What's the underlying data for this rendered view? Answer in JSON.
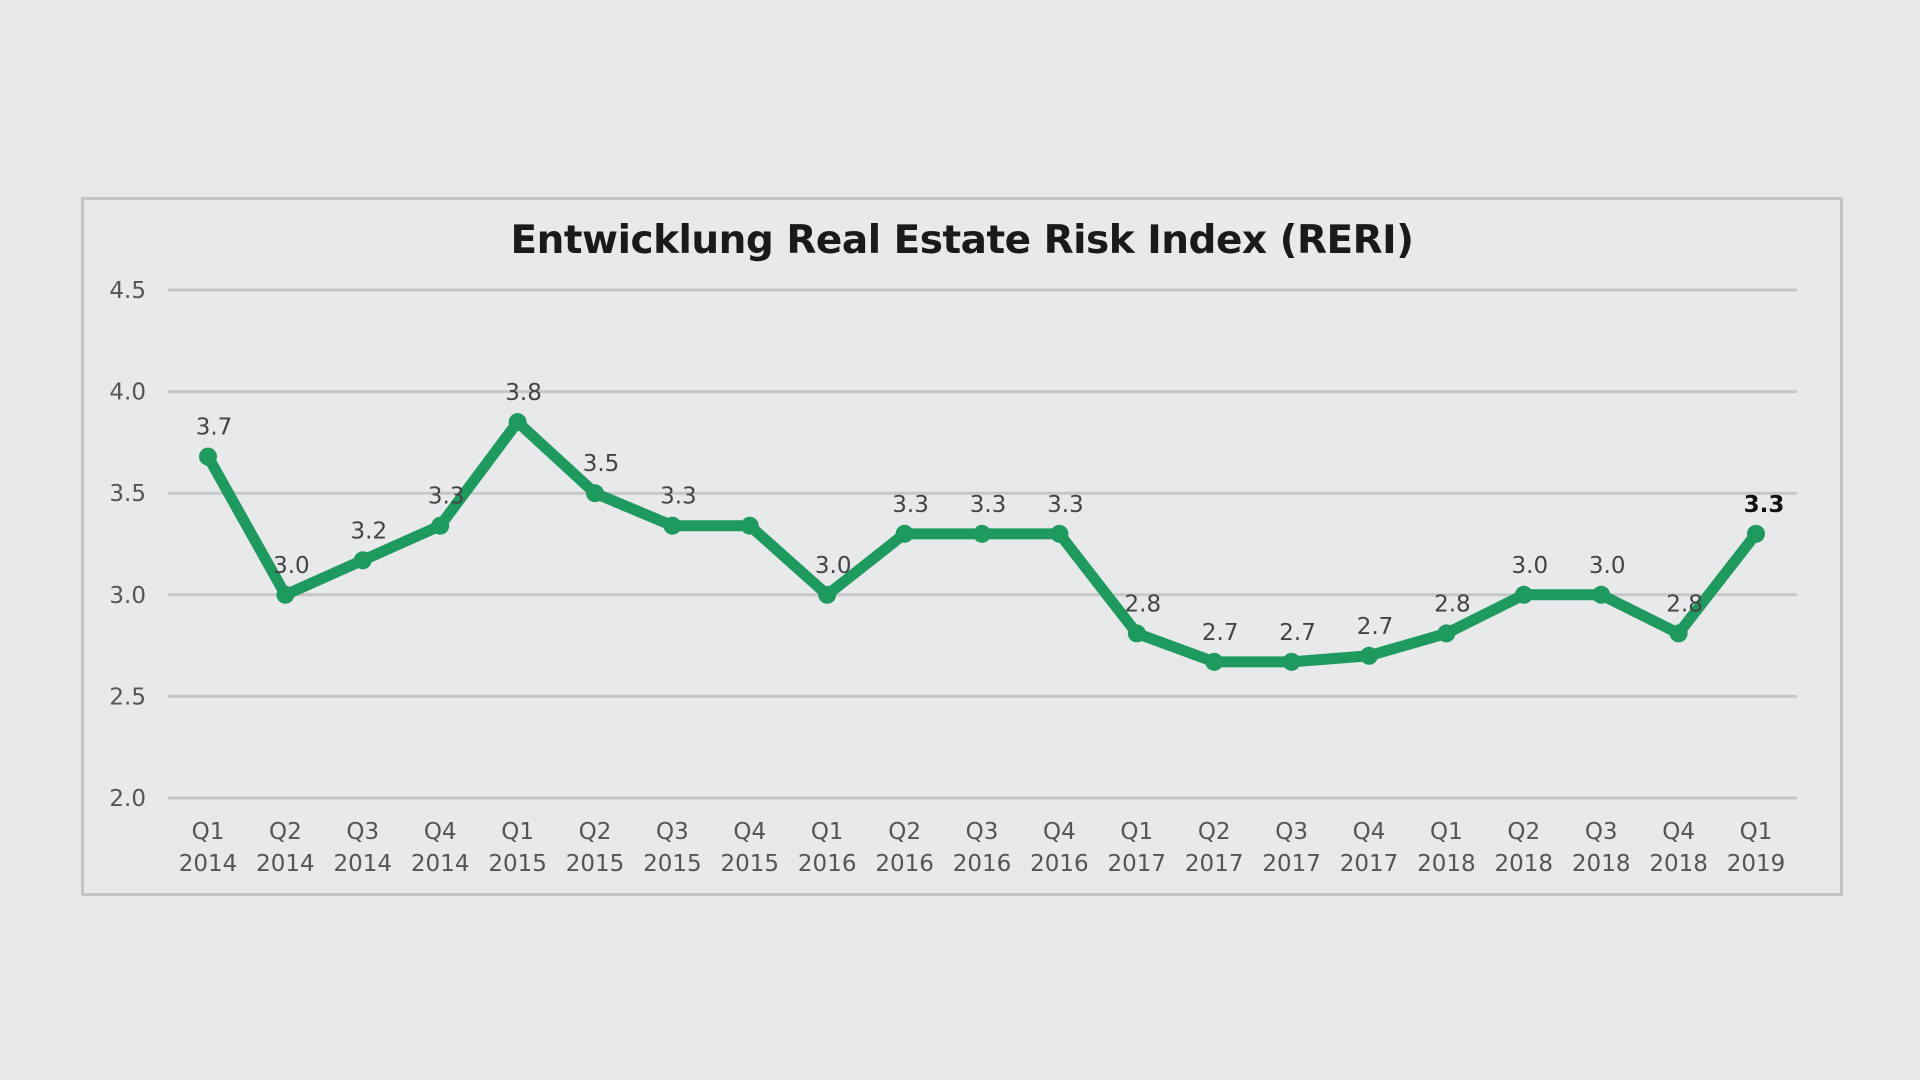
{
  "chart_data": {
    "type": "line",
    "title": "Entwicklung Real Estate Risk Index (RERI)",
    "xlabel": "",
    "ylabel": "",
    "ylim": [
      2.0,
      4.5
    ],
    "yticks": [
      "2.0",
      "2.5",
      "3.0",
      "3.5",
      "4.0",
      "4.5"
    ],
    "grid": true,
    "categories": [
      [
        "Q1",
        "2014"
      ],
      [
        "Q2",
        "2014"
      ],
      [
        "Q3",
        "2014"
      ],
      [
        "Q4",
        "2014"
      ],
      [
        "Q1",
        "2015"
      ],
      [
        "Q2",
        "2015"
      ],
      [
        "Q3",
        "2015"
      ],
      [
        "Q4",
        "2015"
      ],
      [
        "Q1",
        "2016"
      ],
      [
        "Q2",
        "2016"
      ],
      [
        "Q3",
        "2016"
      ],
      [
        "Q4",
        "2016"
      ],
      [
        "Q1",
        "2017"
      ],
      [
        "Q2",
        "2017"
      ],
      [
        "Q3",
        "2017"
      ],
      [
        "Q4",
        "2017"
      ],
      [
        "Q1",
        "2018"
      ],
      [
        "Q2",
        "2018"
      ],
      [
        "Q3",
        "2018"
      ],
      [
        "Q4",
        "2018"
      ],
      [
        "Q1",
        "2019"
      ]
    ],
    "series": [
      {
        "name": "RERI",
        "color": "#1f9a5e",
        "values": [
          3.68,
          3.0,
          3.17,
          3.34,
          3.85,
          3.5,
          3.34,
          3.34,
          3.0,
          3.3,
          3.3,
          3.3,
          2.81,
          2.67,
          2.67,
          2.7,
          2.81,
          3.0,
          3.0,
          2.81,
          3.3
        ],
        "labels": [
          "3.7",
          "3.0",
          "3.2",
          "3.3",
          "3.8",
          "3.5",
          "3.3",
          "",
          "3.0",
          "3.3",
          "3.3",
          "3.3",
          "2.8",
          "2.7",
          "2.7",
          "2.7",
          "2.8",
          "3.0",
          "3.0",
          "2.8",
          "3.3"
        ]
      }
    ]
  }
}
